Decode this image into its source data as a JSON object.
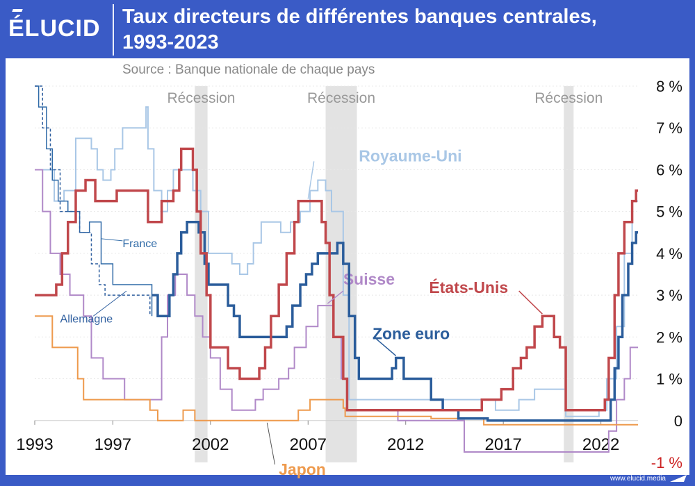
{
  "header": {
    "logo_text": "ÉLUCID",
    "title_line1": "Taux directeurs de différentes banques centrales,",
    "title_line2": "1993-2023",
    "source": "Source : Banque nationale de chaque pays"
  },
  "footer": {
    "website": "www.elucid.media"
  },
  "colors": {
    "frame": "#3a5bc6",
    "etats_unis": "#c0474b",
    "zone_euro": "#2b5d9b",
    "royaume_uni": "#a9c7e6",
    "suisse": "#b089c8",
    "japon": "#ee9a4d",
    "france": "#2f6aa7",
    "allemagne": "#2f5f9f",
    "recession": "#e3e3e3",
    "negative_tick": "#cc2222"
  },
  "chart_data": {
    "type": "line",
    "title": "Taux directeurs de différentes banques centrales, 1993-2023",
    "xlabel": "",
    "ylabel": "",
    "xlim": [
      1993,
      2023.9
    ],
    "ylim": [
      -1,
      8
    ],
    "x_ticks": [
      1993,
      1997,
      2002,
      2007,
      2012,
      2017,
      2022
    ],
    "x_tick_labels": [
      "1993",
      "1997",
      "2002",
      "2007",
      "2012",
      "2017",
      "2022"
    ],
    "y_ticks": [
      8,
      7,
      6,
      5,
      4,
      3,
      2,
      1,
      0,
      -1
    ],
    "y_tick_labels": [
      "8 %",
      "7 %",
      "6 %",
      "5 %",
      "4 %",
      "3 %",
      "2 %",
      "1 %",
      "0",
      "-1 %"
    ],
    "grid": true,
    "recessions": [
      {
        "label": "Récession",
        "start": 2001.2,
        "end": 2001.85
      },
      {
        "label": "Récession",
        "start": 2007.9,
        "end": 2009.5
      },
      {
        "label": "Récession",
        "start": 2020.1,
        "end": 2020.6
      }
    ],
    "series": [
      {
        "name": "Royaume-Uni",
        "color_key": "royaume_uni",
        "width": 2,
        "label_x": 2009.6,
        "label_y": 6.2,
        "label_size": 23,
        "points": [
          [
            1993,
            6
          ],
          [
            1994,
            5.25
          ],
          [
            1994.5,
            5.5
          ],
          [
            1995.1,
            6.75
          ],
          [
            1995.9,
            6.5
          ],
          [
            1996.2,
            6
          ],
          [
            1996.5,
            5.75
          ],
          [
            1996.9,
            6
          ],
          [
            1997.1,
            6.5
          ],
          [
            1997.5,
            7
          ],
          [
            1998.7,
            7.5
          ],
          [
            1998.8,
            6.5
          ],
          [
            1999.1,
            5.5
          ],
          [
            1999.5,
            5
          ],
          [
            1999.8,
            5.5
          ],
          [
            2000.1,
            6
          ],
          [
            2001.1,
            5.5
          ],
          [
            2001.5,
            5
          ],
          [
            2001.9,
            4
          ],
          [
            2003.1,
            3.75
          ],
          [
            2003.5,
            3.5
          ],
          [
            2003.9,
            3.75
          ],
          [
            2004.2,
            4.25
          ],
          [
            2004.6,
            4.75
          ],
          [
            2005.6,
            4.5
          ],
          [
            2006.1,
            4.75
          ],
          [
            2006.6,
            5
          ],
          [
            2007.1,
            5.5
          ],
          [
            2007.5,
            5.75
          ],
          [
            2007.9,
            5.5
          ],
          [
            2008.2,
            5
          ],
          [
            2008.8,
            3
          ],
          [
            2009.1,
            0.5
          ],
          [
            2016.6,
            0.25
          ],
          [
            2017.8,
            0.5
          ],
          [
            2018.6,
            0.75
          ],
          [
            2020.2,
            0.1
          ],
          [
            2021.9,
            0.25
          ],
          [
            2022.3,
            1
          ],
          [
            2022.8,
            2.25
          ],
          [
            2023.2,
            4
          ],
          [
            2023.6,
            5.25
          ],
          [
            2023.9,
            5.25
          ]
        ]
      },
      {
        "name": "Suisse",
        "color_key": "suisse",
        "width": 2,
        "label_x": 2008.8,
        "label_y": 3.25,
        "label_size": 23,
        "points": [
          [
            1993,
            6
          ],
          [
            1993.4,
            5
          ],
          [
            1993.8,
            4
          ],
          [
            1994.3,
            3.5
          ],
          [
            1994.8,
            3
          ],
          [
            1995.5,
            2.5
          ],
          [
            1995.9,
            1.5
          ],
          [
            1996.5,
            1
          ],
          [
            1997.6,
            0.5
          ],
          [
            1999.5,
            2
          ],
          [
            1999.8,
            3
          ],
          [
            2000.2,
            3.5
          ],
          [
            2000.8,
            3
          ],
          [
            2001.2,
            2.5
          ],
          [
            2001.6,
            2
          ],
          [
            2002,
            1.5
          ],
          [
            2002.5,
            0.75
          ],
          [
            2003.1,
            0.25
          ],
          [
            2004.3,
            0.5
          ],
          [
            2004.7,
            0.75
          ],
          [
            2005.5,
            1
          ],
          [
            2006,
            1.25
          ],
          [
            2006.3,
            1.75
          ],
          [
            2006.9,
            2.25
          ],
          [
            2007.5,
            2.75
          ],
          [
            2008.3,
            2
          ],
          [
            2008.7,
            1
          ],
          [
            2009,
            0.25
          ],
          [
            2011.6,
            0
          ],
          [
            2015,
            -0.75
          ],
          [
            2022.4,
            -0.25
          ],
          [
            2022.8,
            0.5
          ],
          [
            2023.2,
            1
          ],
          [
            2023.5,
            1.75
          ],
          [
            2023.9,
            1.75
          ]
        ]
      },
      {
        "name": "Japon",
        "color_key": "japon",
        "width": 2,
        "label_x": 2005.5,
        "label_y": -1.3,
        "label_size": 23,
        "points": [
          [
            1993,
            2.5
          ],
          [
            1993.9,
            1.75
          ],
          [
            1995.2,
            1
          ],
          [
            1995.5,
            0.5
          ],
          [
            1998.9,
            0.25
          ],
          [
            1999.3,
            0
          ],
          [
            2000.6,
            0.25
          ],
          [
            2001.2,
            0
          ],
          [
            2006.5,
            0.25
          ],
          [
            2007.1,
            0.5
          ],
          [
            2008.8,
            0.3
          ],
          [
            2008.9,
            0.1
          ],
          [
            2013.3,
            0.05
          ],
          [
            2016,
            -0.1
          ],
          [
            2023.9,
            -0.1
          ]
        ]
      },
      {
        "name": "France",
        "color_key": "france",
        "width": 1.5,
        "label_x": 1997.5,
        "label_y": 4.15,
        "label_size": 16,
        "leader": [
          1997.5,
          4.3,
          1996.4,
          4.35
        ],
        "points": [
          [
            1993,
            8
          ],
          [
            1993.2,
            7.5
          ],
          [
            1993.6,
            6.5
          ],
          [
            1993.9,
            5.75
          ],
          [
            1994.2,
            5.25
          ],
          [
            1994.7,
            5
          ],
          [
            1995.3,
            4.5
          ],
          [
            1995.8,
            4.75
          ],
          [
            1996.4,
            3.75
          ],
          [
            1997,
            3.25
          ],
          [
            1999,
            2.5
          ]
        ]
      },
      {
        "name": "Allemagne",
        "color_key": "allemagne",
        "width": 1.5,
        "dash": "4 3",
        "label_x": 1994.3,
        "label_y": 2.35,
        "label_size": 16,
        "leader": [
          1996,
          2.5,
          1997.7,
          3.1
        ],
        "points": [
          [
            1993,
            8
          ],
          [
            1993.4,
            7
          ],
          [
            1993.8,
            6
          ],
          [
            1994.3,
            5
          ],
          [
            1995.3,
            4.5
          ],
          [
            1995.9,
            3.75
          ],
          [
            1996.3,
            3.25
          ],
          [
            1996.6,
            3
          ],
          [
            1998.9,
            2.5
          ]
        ]
      },
      {
        "name": "Zone euro",
        "color_key": "zone_euro",
        "width": 3.5,
        "label_x": 2010.3,
        "label_y": 1.95,
        "label_size": 23,
        "points": [
          [
            1999,
            3
          ],
          [
            1999.3,
            2.5
          ],
          [
            1999.9,
            3
          ],
          [
            2000.1,
            3.5
          ],
          [
            2000.3,
            4
          ],
          [
            2000.5,
            4.5
          ],
          [
            2000.8,
            4.75
          ],
          [
            2001.4,
            4.5
          ],
          [
            2001.7,
            3.75
          ],
          [
            2001.9,
            3.25
          ],
          [
            2002.9,
            2.75
          ],
          [
            2003.2,
            2.5
          ],
          [
            2003.5,
            2
          ],
          [
            2005.9,
            2.25
          ],
          [
            2006.2,
            2.75
          ],
          [
            2006.6,
            3.25
          ],
          [
            2006.9,
            3.5
          ],
          [
            2007.2,
            3.75
          ],
          [
            2007.5,
            4
          ],
          [
            2008.5,
            4.25
          ],
          [
            2008.8,
            3.75
          ],
          [
            2009.1,
            2.5
          ],
          [
            2009.4,
            1.5
          ],
          [
            2009.6,
            1
          ],
          [
            2011.3,
            1.25
          ],
          [
            2011.5,
            1.5
          ],
          [
            2011.9,
            1
          ],
          [
            2013.3,
            0.5
          ],
          [
            2013.9,
            0.25
          ],
          [
            2014.7,
            0.05
          ],
          [
            2016.2,
            0
          ],
          [
            2022.5,
            0.5
          ],
          [
            2022.7,
            1.25
          ],
          [
            2022.9,
            2
          ],
          [
            2023.1,
            3
          ],
          [
            2023.4,
            3.75
          ],
          [
            2023.6,
            4.25
          ],
          [
            2023.8,
            4.5
          ],
          [
            2023.9,
            4.5
          ]
        ]
      },
      {
        "name": "États-Unis",
        "color_key": "etats_unis",
        "width": 3.5,
        "label_x": 2013.2,
        "label_y": 3.05,
        "label_size": 23,
        "points": [
          [
            1993,
            3
          ],
          [
            1994.1,
            3.25
          ],
          [
            1994.4,
            4
          ],
          [
            1994.7,
            4.75
          ],
          [
            1995.1,
            5.5
          ],
          [
            1995.6,
            5.75
          ],
          [
            1996.1,
            5.25
          ],
          [
            1997.2,
            5.5
          ],
          [
            1998.8,
            4.75
          ],
          [
            1999.5,
            5.25
          ],
          [
            2000.1,
            5.5
          ],
          [
            2000.4,
            6
          ],
          [
            2000.5,
            6.5
          ],
          [
            2001.1,
            6
          ],
          [
            2001.3,
            5
          ],
          [
            2001.5,
            4
          ],
          [
            2001.8,
            3
          ],
          [
            2002,
            1.75
          ],
          [
            2002.9,
            1.25
          ],
          [
            2003.5,
            1
          ],
          [
            2004.5,
            1.25
          ],
          [
            2004.8,
            1.75
          ],
          [
            2005.1,
            2.5
          ],
          [
            2005.5,
            3.25
          ],
          [
            2005.9,
            4
          ],
          [
            2006.3,
            4.75
          ],
          [
            2006.5,
            5.25
          ],
          [
            2007.7,
            4.75
          ],
          [
            2007.9,
            4.25
          ],
          [
            2008.1,
            3
          ],
          [
            2008.3,
            2
          ],
          [
            2008.8,
            1
          ],
          [
            2009,
            0.25
          ],
          [
            2015.9,
            0.5
          ],
          [
            2016.9,
            0.75
          ],
          [
            2017.5,
            1.25
          ],
          [
            2017.9,
            1.5
          ],
          [
            2018.2,
            1.75
          ],
          [
            2018.6,
            2.25
          ],
          [
            2019,
            2.5
          ],
          [
            2019.6,
            2
          ],
          [
            2019.9,
            1.75
          ],
          [
            2020.2,
            0.25
          ],
          [
            2022.2,
            0.5
          ],
          [
            2022.4,
            1.5
          ],
          [
            2022.7,
            3
          ],
          [
            2022.9,
            4
          ],
          [
            2023.2,
            4.75
          ],
          [
            2023.6,
            5.25
          ],
          [
            2023.8,
            5.5
          ],
          [
            2023.9,
            5.5
          ]
        ]
      }
    ]
  }
}
